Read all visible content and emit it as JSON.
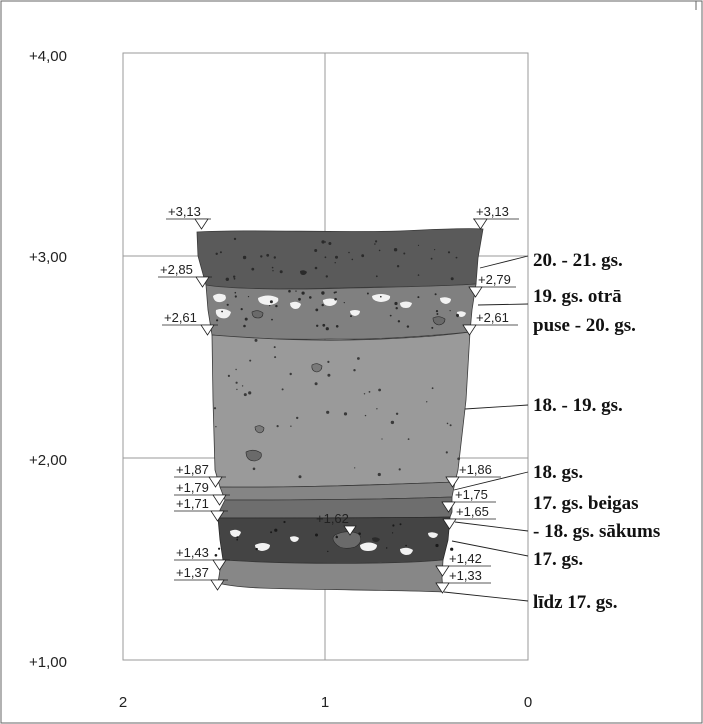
{
  "y_axis_labels": [
    "+4,00",
    "+3,00",
    "+2,00",
    "+1,00"
  ],
  "x_axis_labels": [
    "2",
    "1",
    "0"
  ],
  "elevations": {
    "left": [
      "+3,13",
      "+2,85",
      "+2,61",
      "+1,87",
      "+1,79",
      "+1,71",
      "+1,43",
      "+1,37"
    ],
    "right": [
      "+3,13",
      "+2,79",
      "+2,61",
      "+1,86",
      "+1,75",
      "+1,65",
      "+1,42",
      "+1,33"
    ],
    "center": "+1,62"
  },
  "periods": [
    {
      "line1": "20. - 21. gs."
    },
    {
      "line1": "19. gs. otrā",
      "line2": "puse - 20. gs."
    },
    {
      "line1": "18. - 19. gs."
    },
    {
      "line1": "18. gs."
    },
    {
      "line1": "17. gs. beigas",
      "line2": "- 18. gs. sākums"
    },
    {
      "line1": "17. gs."
    },
    {
      "line1": "līdz 17. gs."
    }
  ],
  "colors": {
    "layer_top": "#5a5a5a",
    "layer_19_20": "#808080",
    "layer_18_19": "#9a9a9a",
    "layer_18": "#858585",
    "layer_17_18": "#6e6e6e",
    "layer_17": "#444444",
    "layer_bottom": "#878787",
    "inclusion_light": "#f2f2f2",
    "inclusion_dark": "#2a2a2a"
  }
}
